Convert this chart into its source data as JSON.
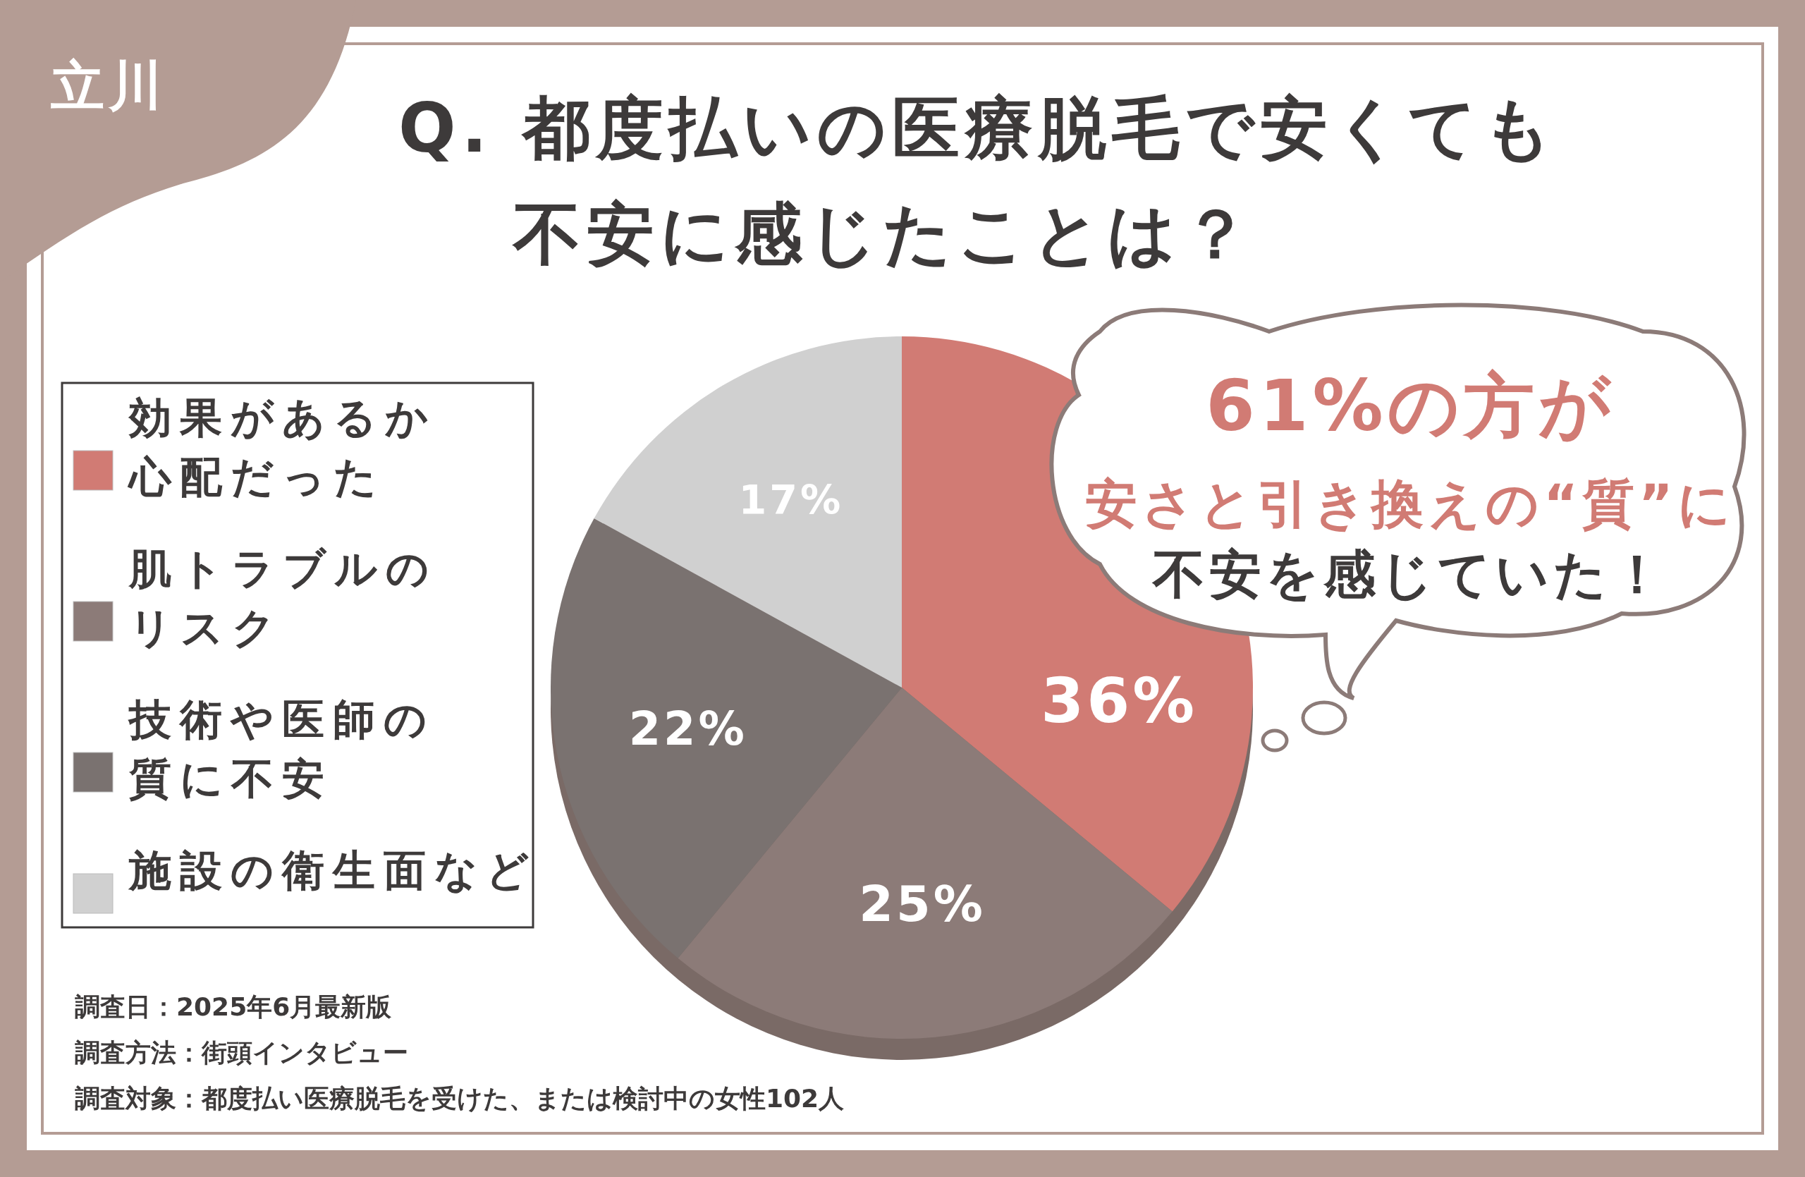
{
  "chart_data": {
    "type": "pie",
    "title": "Q. 都度払いの医療脱毛で安くても不安に感じたことは？",
    "categories": [
      "効果があるか心配だった",
      "肌トラブルのリスク",
      "技術や医師の質に不安",
      "施設の衛生面など"
    ],
    "values": [
      36,
      25,
      22,
      17
    ],
    "colors": [
      "#d17b74",
      "#8c7b78",
      "#7a7270",
      "#d0d0d0"
    ],
    "value_labels": [
      "36%",
      "25%",
      "22%",
      "17%"
    ],
    "legend": "left",
    "annotations": [
      "立川",
      "61%の方が",
      "安さと引き換えの“質”に",
      "不安を感じていた！",
      "調査日：2025年6月最新版",
      "調査方法：街頭インタビュー",
      "調査対象：都度払い医療脱毛を受けた、または検討中の女性102人"
    ]
  }
}
